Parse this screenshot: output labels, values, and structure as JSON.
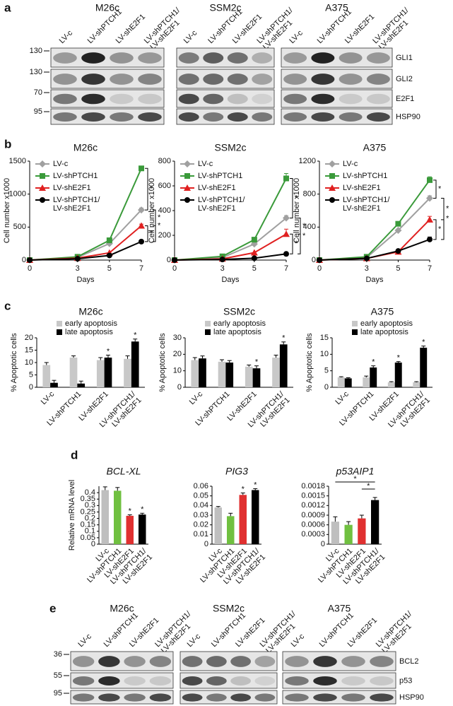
{
  "figure": {
    "panel_labels": [
      "a",
      "b",
      "c",
      "d",
      "e"
    ]
  },
  "blots": [
    {
      "cell_lines": [
        "M26c",
        "SSM2c",
        "A375"
      ],
      "lanes": [
        "LV-c",
        "LV-shPTCH1",
        "LV-shE2F1",
        "LV-shPTCH1/\nLV-shE2F1"
      ],
      "proteins": [
        "GLI1",
        "GLI2",
        "E2F1",
        "HSP90"
      ],
      "markers": [
        "130",
        "130",
        "70",
        "95"
      ]
    },
    {
      "cell_lines": [
        "M26c",
        "SSM2c",
        "A375"
      ],
      "lanes": [
        "LV-c",
        "LV-shPTCH1",
        "LV-shE2F1",
        "LV-shPTCH1/\nLV-shE2F1"
      ],
      "proteins": [
        "BCL2",
        "p53",
        "HSP90"
      ],
      "markers": [
        "36",
        "55",
        "95"
      ]
    }
  ],
  "chart_data": [
    {
      "type": "line",
      "title": "M26c",
      "xlabel": "Days",
      "ylabel": "Cell number x1000",
      "x": [
        0,
        3,
        5,
        7
      ],
      "xlim": [
        0,
        7
      ],
      "xticks": [
        0,
        3,
        5,
        7
      ],
      "ylim": [
        0,
        1500
      ],
      "yticks": [
        0,
        500,
        1000,
        1500
      ],
      "series": [
        {
          "name": "LV-c",
          "color": "#a0a0a0",
          "marker": "diamond",
          "values": [
            0,
            40,
            250,
            760
          ],
          "errors": [
            0,
            0,
            0,
            30
          ]
        },
        {
          "name": "LV-shPTCH1",
          "color": "#3a9a3a",
          "marker": "square",
          "values": [
            0,
            50,
            300,
            1390
          ],
          "errors": [
            0,
            0,
            0,
            25
          ]
        },
        {
          "name": "LV-shE2F1",
          "color": "#e02020",
          "marker": "triangle",
          "values": [
            0,
            30,
            110,
            520
          ],
          "errors": [
            0,
            0,
            0,
            25
          ]
        },
        {
          "name": "LV-shPTCH1/\nLV-shE2F1",
          "color": "#000000",
          "marker": "circle",
          "values": [
            0,
            20,
            70,
            280
          ],
          "errors": [
            0,
            0,
            0,
            10
          ]
        }
      ],
      "brackets": [
        {
          "from": 1,
          "to": 0,
          "label": "*"
        },
        {
          "from": 0,
          "to": 2,
          "label": "*"
        },
        {
          "from": 2,
          "to": 3,
          "label": "*"
        },
        {
          "from": 0,
          "to": 3,
          "label": "*"
        }
      ]
    },
    {
      "type": "line",
      "title": "SSM2c",
      "xlabel": "Days",
      "ylabel": "Cell number x1000",
      "x": [
        0,
        3,
        5,
        7
      ],
      "xlim": [
        0,
        7
      ],
      "xticks": [
        0,
        3,
        5,
        7
      ],
      "ylim": [
        0,
        800
      ],
      "yticks": [
        0,
        200,
        400,
        600,
        800
      ],
      "series": [
        {
          "name": "LV-c",
          "color": "#a0a0a0",
          "marker": "diamond",
          "values": [
            0,
            20,
            130,
            340
          ],
          "errors": [
            0,
            0,
            0,
            20
          ]
        },
        {
          "name": "LV-shPTCH1",
          "color": "#3a9a3a",
          "marker": "square",
          "values": [
            0,
            30,
            165,
            660
          ],
          "errors": [
            0,
            0,
            0,
            40
          ]
        },
        {
          "name": "LV-shE2F1",
          "color": "#e02020",
          "marker": "triangle",
          "values": [
            0,
            10,
            60,
            210
          ],
          "errors": [
            0,
            0,
            0,
            40
          ]
        },
        {
          "name": "LV-shPTCH1/\nLV-shE2F1",
          "color": "#000000",
          "marker": "circle",
          "values": [
            0,
            5,
            15,
            50
          ],
          "errors": [
            0,
            0,
            0,
            5
          ]
        }
      ],
      "brackets": [
        {
          "from": 1,
          "to": 0,
          "label": "*"
        },
        {
          "from": 0,
          "to": 2,
          "label": "*"
        },
        {
          "from": 2,
          "to": 3,
          "label": "*"
        },
        {
          "from": 0,
          "to": 3,
          "label": "*"
        }
      ]
    },
    {
      "type": "line",
      "title": "A375",
      "xlabel": "Days",
      "ylabel": "Cell number x1000",
      "x": [
        0,
        3,
        5,
        7
      ],
      "xlim": [
        0,
        7
      ],
      "xticks": [
        0,
        3,
        5,
        7
      ],
      "ylim": [
        0,
        1200
      ],
      "yticks": [
        0,
        400,
        800,
        1200
      ],
      "series": [
        {
          "name": "LV-c",
          "color": "#a0a0a0",
          "marker": "diamond",
          "values": [
            0,
            30,
            360,
            750
          ],
          "errors": [
            0,
            0,
            0,
            30
          ]
        },
        {
          "name": "LV-shPTCH1",
          "color": "#3a9a3a",
          "marker": "square",
          "values": [
            0,
            40,
            440,
            970
          ],
          "errors": [
            0,
            0,
            0,
            40
          ]
        },
        {
          "name": "LV-shE2F1",
          "color": "#e02020",
          "marker": "triangle",
          "values": [
            0,
            20,
            100,
            490
          ],
          "errors": [
            0,
            0,
            0,
            40
          ]
        },
        {
          "name": "LV-shPTCH1/\nLV-shE2F1",
          "color": "#000000",
          "marker": "circle",
          "values": [
            0,
            20,
            110,
            250
          ],
          "errors": [
            0,
            0,
            0,
            30
          ]
        }
      ],
      "brackets": [
        {
          "from": 1,
          "to": 0,
          "label": "*"
        },
        {
          "from": 0,
          "to": 2,
          "label": "*"
        },
        {
          "from": 2,
          "to": 3,
          "label": "*"
        },
        {
          "from": 0,
          "to": 3,
          "label": "*"
        }
      ]
    },
    {
      "type": "grouped_bar",
      "title": "M26c",
      "ylabel": "% Apoptotic cells",
      "categories": [
        "LV-c",
        "LV-shPTCH1",
        "LV-shE2F1",
        "LV-shPTCH1/\nLV-shE2F1"
      ],
      "ylim": [
        0,
        20
      ],
      "yticks": [
        0,
        5,
        10,
        15,
        20
      ],
      "series": [
        {
          "name": "early apoptosis",
          "color": "#c8c8c8",
          "values": [
            9,
            12,
            11,
            11.5
          ],
          "errors": [
            1,
            0.7,
            1,
            1.2
          ],
          "significance": [
            null,
            null,
            null,
            null
          ]
        },
        {
          "name": "late apoptosis",
          "color": "#000000",
          "values": [
            1.8,
            1.5,
            12,
            18.5
          ],
          "errors": [
            1,
            1,
            1,
            1
          ],
          "significance": [
            null,
            null,
            "*",
            "*"
          ]
        }
      ]
    },
    {
      "type": "grouped_bar",
      "title": "SSM2c",
      "ylabel": "% Apoptotic cells",
      "categories": [
        "LV-c",
        "LV-shPTCH1",
        "LV-shE2F1",
        "LV-shPTCH1/\nLV-shE2F1"
      ],
      "ylim": [
        0,
        30
      ],
      "yticks": [
        0,
        10,
        20,
        30
      ],
      "series": [
        {
          "name": "early apoptosis",
          "color": "#c8c8c8",
          "values": [
            16.5,
            15.5,
            12.5,
            18
          ],
          "errors": [
            1.5,
            1.2,
            1,
            1.5
          ],
          "significance": [
            null,
            null,
            null,
            null
          ]
        },
        {
          "name": "late apoptosis",
          "color": "#000000",
          "values": [
            17.5,
            15,
            11.5,
            26
          ],
          "errors": [
            1.5,
            1.2,
            1.5,
            1.5
          ],
          "significance": [
            null,
            null,
            "*",
            "*"
          ]
        }
      ]
    },
    {
      "type": "grouped_bar",
      "title": "A375",
      "ylabel": "% Apoptotic cells",
      "categories": [
        "LV-c",
        "LV-shPTCH1",
        "LV-shE2F1",
        "LV-shPTCH1/\nLV-shE2F1"
      ],
      "ylim": [
        0,
        15
      ],
      "yticks": [
        0,
        5,
        10,
        15
      ],
      "series": [
        {
          "name": "early apoptosis",
          "color": "#c8c8c8",
          "values": [
            3,
            3,
            1.5,
            1.5
          ],
          "errors": [
            0.2,
            0.4,
            0.2,
            0.2
          ],
          "significance": [
            null,
            null,
            null,
            null
          ]
        },
        {
          "name": "late apoptosis",
          "color": "#000000",
          "values": [
            2.7,
            6,
            7.5,
            12
          ],
          "errors": [
            0.2,
            0.5,
            0.3,
            0.5
          ],
          "significance": [
            null,
            "*",
            "*",
            "*"
          ]
        }
      ]
    },
    {
      "type": "bar",
      "title": "BCL-XL",
      "ylabel": "Relative mRNA level",
      "categories": [
        "LV-c",
        "LV-shPTCH1",
        "LV-shE2F1",
        "LV-shPTCH1/\nLV-shE2F1"
      ],
      "ylim": [
        0,
        0.45
      ],
      "yticks": [
        0,
        0.05,
        0.1,
        0.15,
        0.2,
        0.25,
        0.3,
        0.35,
        0.4
      ],
      "values": [
        0.42,
        0.415,
        0.22,
        0.23
      ],
      "errors": [
        0.025,
        0.025,
        0.008,
        0.01
      ],
      "colors": [
        "#bfbfbf",
        "#70c040",
        "#e03030",
        "#000000"
      ],
      "significance": [
        null,
        null,
        "*",
        "*"
      ]
    },
    {
      "type": "bar",
      "title": "PIG3",
      "categories": [
        "LV-c",
        "LV-shPTCH1",
        "LV-shE2F1",
        "LV-shPTCH1/\nLV-shE2F1"
      ],
      "ylim": [
        0,
        0.06
      ],
      "yticks": [
        0,
        0.01,
        0.02,
        0.03,
        0.04,
        0.05,
        0.06
      ],
      "values": [
        0.038,
        0.029,
        0.051,
        0.056
      ],
      "errors": [
        0.001,
        0.003,
        0.002,
        0.0015
      ],
      "colors": [
        "#bfbfbf",
        "#70c040",
        "#e03030",
        "#000000"
      ],
      "significance": [
        null,
        null,
        "*",
        "*"
      ]
    },
    {
      "type": "bar",
      "title": "p53AIP1",
      "categories": [
        "LV-c",
        "LV-shPTCH1",
        "LV-shE2F1",
        "LV-shPTCH1/\nLV-shE2F1"
      ],
      "ylim": [
        0,
        0.0018
      ],
      "yticks": [
        0,
        0.0003,
        0.0006,
        0.0009,
        0.0012,
        0.0015,
        0.0018
      ],
      "values": [
        0.0007,
        0.0006,
        0.0008,
        0.00137
      ],
      "errors": [
        0.00015,
        0.0001,
        0.0001,
        8e-05
      ],
      "colors": [
        "#bfbfbf",
        "#70c040",
        "#e03030",
        "#000000"
      ],
      "brackets": [
        {
          "from": 0,
          "to": 3,
          "label": "*"
        },
        {
          "from": 2,
          "to": 3,
          "label": "*"
        }
      ]
    }
  ]
}
